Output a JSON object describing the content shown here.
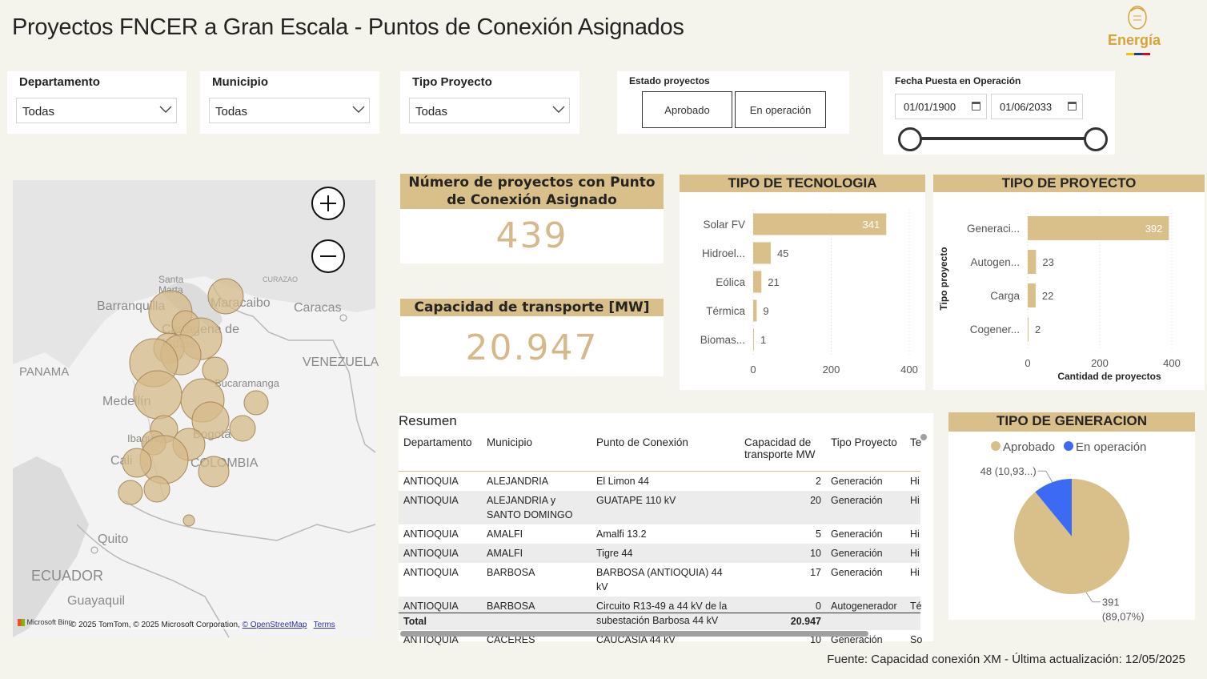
{
  "header": {
    "title": "Proyectos FNCER a Gran Escala - Puntos de Conexión Asignados",
    "logo_text": "Energía"
  },
  "slicers": {
    "departamento": {
      "label": "Departamento",
      "value": "Todas"
    },
    "municipio": {
      "label": "Municipio",
      "value": "Todas"
    },
    "tipo_proyecto": {
      "label": "Tipo Proyecto",
      "value": "Todas"
    },
    "estado": {
      "label": "Estado proyectos",
      "options": [
        "Aprobado",
        "En operación"
      ]
    },
    "fecha": {
      "label": "Fecha Puesta en Operación",
      "start": "01/01/1900",
      "end": "01/06/2033"
    }
  },
  "map": {
    "attribution": "© 2025 TomTom, © 2025 Microsoft Corporation,",
    "osm_link": "© OpenStreetMap",
    "terms_link": "Terms",
    "bing_label": "Microsoft Bing",
    "places": [
      "Santa Marta",
      "Barranquilla",
      "Maracaibo",
      "Caracas",
      "CURAZAO",
      "Cartagena de Indias",
      "VENEZUELA",
      "PANAMA",
      "Bucaramanga",
      "Medellín",
      "Ibagué",
      "Bogotá",
      "Cali",
      "COLOMBIA",
      "Quito",
      "ECUADOR",
      "Guayaquil"
    ]
  },
  "kpis": {
    "projects": {
      "label": "Número de proyectos con Punto de Conexión Asignado",
      "value": "439"
    },
    "capacity": {
      "label": "Capacidad de transporte [MW]",
      "value": "20.947"
    }
  },
  "chart_data": [
    {
      "type": "bar",
      "orientation": "horizontal",
      "title": "TIPO DE TECNOLOGIA",
      "categories": [
        "Solar FV",
        "Hidroel...",
        "Eólica",
        "Térmica",
        "Biomas..."
      ],
      "values": [
        341,
        45,
        21,
        9,
        1
      ],
      "xlim": [
        0,
        400
      ],
      "xticks": [
        "0",
        "200",
        "400"
      ],
      "color": "#d9bf8a"
    },
    {
      "type": "bar",
      "orientation": "horizontal",
      "title": "TIPO DE PROYECTO",
      "categories": [
        "Generaci...",
        "Autogen...",
        "Carga",
        "Cogener..."
      ],
      "values": [
        392,
        23,
        22,
        2
      ],
      "xlim": [
        0,
        400
      ],
      "xticks": [
        "0",
        "200",
        "400"
      ],
      "xlabel": "Cantidad de proyectos",
      "ylabel": "Tipo proyecto",
      "color": "#d9bf8a"
    },
    {
      "type": "pie",
      "title": "TIPO DE GENERACION",
      "categories": [
        "Aprobado",
        "En operación"
      ],
      "values": [
        391,
        48
      ],
      "labels": [
        [
          "391",
          "(89,07%)"
        ],
        [
          "48 (10,93...)"
        ]
      ],
      "colors": [
        "#d9bf8a",
        "#3d6af5"
      ],
      "legend": "top"
    }
  ],
  "table": {
    "title": "Resumen",
    "columns": [
      "Departamento",
      "Municipio",
      "Punto de Conexión",
      "Capacidad de transporte MW",
      "Tipo Proyecto",
      "Te"
    ],
    "rows": [
      [
        "ANTIOQUIA",
        "ALEJANDRIA",
        "El Limon 44",
        "2",
        "Generación",
        "Hi"
      ],
      [
        "ANTIOQUIA",
        "ALEJANDRIA y SANTO DOMINGO",
        "GUATAPE 110 kV",
        "20",
        "Generación",
        "Hi"
      ],
      [
        "ANTIOQUIA",
        "AMALFI",
        "Amalfi 13.2",
        "5",
        "Generación",
        "Hi"
      ],
      [
        "ANTIOQUIA",
        "AMALFI",
        "Tigre 44",
        "10",
        "Generación",
        "Hi"
      ],
      [
        "ANTIOQUIA",
        "BARBOSA",
        "BARBOSA (ANTIOQUIA) 44 kV",
        "17",
        "Generación",
        "Hi"
      ],
      [
        "ANTIOQUIA",
        "BARBOSA",
        "Circuito R13-49 a 44 kV de la subestación Barbosa 44 kV",
        "0",
        "Autogenerador",
        "Té"
      ],
      [
        "ANTIOQUIA",
        "CÁCERES",
        "CAUCASIA 44 kV",
        "10",
        "Generación",
        "So"
      ]
    ],
    "total_label": "Total",
    "total_value": "20.947"
  },
  "footer": {
    "source": "Fuente: Capacidad conexión XM - Última actualización: 12/05/2025"
  }
}
